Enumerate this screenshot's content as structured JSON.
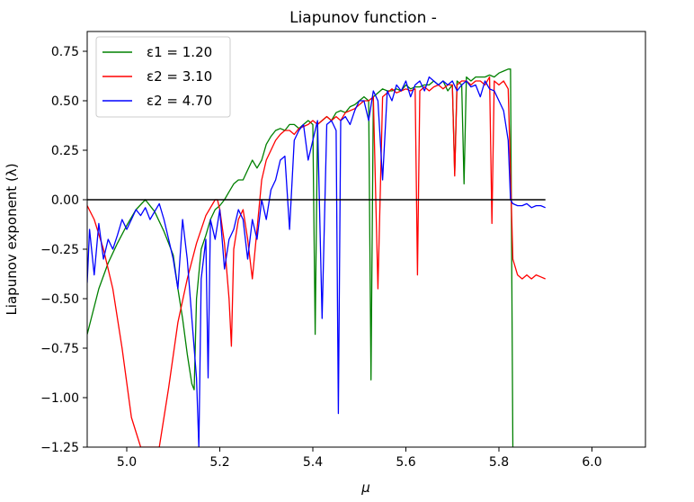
{
  "chart_data": {
    "type": "line",
    "title": "Liapunov function -",
    "xlabel": "μ",
    "ylabel": "Liapunov exponent (λ)",
    "xlim": [
      4.915,
      6.115
    ],
    "ylim": [
      -1.25,
      0.85
    ],
    "xticks": [
      5.0,
      5.2,
      5.4,
      5.6,
      5.8,
      6.0
    ],
    "xtick_labels": [
      "5.0",
      "5.2",
      "5.4",
      "5.6",
      "5.8",
      "6.0"
    ],
    "yticks": [
      0.75,
      0.5,
      0.25,
      0.0,
      -0.25,
      -0.5,
      -0.75,
      -1.0,
      -1.25
    ],
    "ytick_labels": [
      "0.75",
      "0.50",
      "0.25",
      "0.00",
      "−0.25",
      "−0.50",
      "−0.75",
      "−1.00",
      "−1.25"
    ],
    "legend_position": "top-left",
    "grid": false,
    "reference_line": {
      "y": 0.0,
      "x_start": 4.915,
      "x_end": 5.9,
      "color": "#000000"
    },
    "series": [
      {
        "name": "ε1 = 1.20",
        "color": "#008000",
        "x": [
          4.915,
          4.94,
          4.96,
          4.98,
          5.0,
          5.02,
          5.04,
          5.06,
          5.08,
          5.09,
          5.1,
          5.11,
          5.12,
          5.13,
          5.14,
          5.145,
          5.15,
          5.16,
          5.17,
          5.18,
          5.19,
          5.2,
          5.21,
          5.22,
          5.23,
          5.24,
          5.25,
          5.26,
          5.27,
          5.28,
          5.29,
          5.3,
          5.31,
          5.32,
          5.33,
          5.34,
          5.35,
          5.36,
          5.37,
          5.38,
          5.39,
          5.4,
          5.405,
          5.41,
          5.42,
          5.43,
          5.44,
          5.45,
          5.46,
          5.47,
          5.48,
          5.49,
          5.5,
          5.51,
          5.52,
          5.525,
          5.53,
          5.54,
          5.55,
          5.56,
          5.57,
          5.58,
          5.59,
          5.6,
          5.61,
          5.62,
          5.63,
          5.64,
          5.65,
          5.66,
          5.67,
          5.68,
          5.69,
          5.7,
          5.705,
          5.71,
          5.72,
          5.725,
          5.73,
          5.74,
          5.75,
          5.76,
          5.77,
          5.78,
          5.79,
          5.8,
          5.81,
          5.82,
          5.825,
          5.83
        ],
        "y": [
          -0.68,
          -0.45,
          -0.32,
          -0.22,
          -0.13,
          -0.05,
          0.0,
          -0.06,
          -0.16,
          -0.22,
          -0.28,
          -0.45,
          -0.6,
          -0.78,
          -0.93,
          -0.96,
          -0.5,
          -0.25,
          -0.18,
          -0.1,
          -0.05,
          -0.03,
          0.0,
          0.04,
          0.08,
          0.1,
          0.1,
          0.15,
          0.2,
          0.16,
          0.2,
          0.28,
          0.32,
          0.35,
          0.36,
          0.35,
          0.38,
          0.38,
          0.36,
          0.38,
          0.4,
          0.38,
          -0.68,
          0.38,
          0.4,
          0.42,
          0.4,
          0.44,
          0.45,
          0.44,
          0.47,
          0.48,
          0.5,
          0.52,
          0.5,
          -0.91,
          0.52,
          0.54,
          0.56,
          0.55,
          0.55,
          0.56,
          0.55,
          0.58,
          0.56,
          0.57,
          0.57,
          0.58,
          0.58,
          0.6,
          0.58,
          0.6,
          0.55,
          0.58,
          0.13,
          0.6,
          0.58,
          0.08,
          0.62,
          0.6,
          0.62,
          0.62,
          0.62,
          0.63,
          0.62,
          0.64,
          0.65,
          0.66,
          0.66,
          -1.25
        ]
      },
      {
        "name": "ε2 = 3.10",
        "color": "#ff0000",
        "x": [
          4.915,
          4.93,
          4.95,
          4.97,
          4.99,
          5.01,
          5.03,
          5.045,
          5.06,
          5.07,
          5.09,
          5.11,
          5.13,
          5.15,
          5.17,
          5.19,
          5.195,
          5.2,
          5.21,
          5.22,
          5.225,
          5.23,
          5.24,
          5.25,
          5.26,
          5.27,
          5.28,
          5.29,
          5.3,
          5.31,
          5.32,
          5.33,
          5.34,
          5.35,
          5.36,
          5.37,
          5.38,
          5.39,
          5.4,
          5.41,
          5.42,
          5.43,
          5.44,
          5.45,
          5.46,
          5.47,
          5.48,
          5.49,
          5.5,
          5.51,
          5.52,
          5.53,
          5.54,
          5.55,
          5.56,
          5.57,
          5.58,
          5.59,
          5.6,
          5.61,
          5.62,
          5.625,
          5.63,
          5.64,
          5.65,
          5.66,
          5.67,
          5.68,
          5.69,
          5.7,
          5.705,
          5.71,
          5.72,
          5.73,
          5.74,
          5.75,
          5.76,
          5.77,
          5.78,
          5.785,
          5.79,
          5.8,
          5.81,
          5.82,
          5.83,
          5.84,
          5.85,
          5.86,
          5.87,
          5.88,
          5.89,
          5.9
        ],
        "y": [
          -0.03,
          -0.1,
          -0.25,
          -0.45,
          -0.75,
          -1.1,
          -1.25,
          -1.25,
          -1.25,
          -1.25,
          -0.95,
          -0.62,
          -0.4,
          -0.22,
          -0.08,
          0.0,
          0.0,
          -0.05,
          -0.22,
          -0.5,
          -0.74,
          -0.25,
          -0.1,
          -0.05,
          -0.2,
          -0.4,
          -0.15,
          0.1,
          0.2,
          0.25,
          0.3,
          0.33,
          0.35,
          0.35,
          0.33,
          0.36,
          0.37,
          0.38,
          0.4,
          0.38,
          0.4,
          0.42,
          0.4,
          0.42,
          0.4,
          0.44,
          0.45,
          0.46,
          0.48,
          0.5,
          0.5,
          0.52,
          -0.45,
          0.52,
          0.54,
          0.56,
          0.54,
          0.55,
          0.56,
          0.55,
          0.56,
          -0.38,
          0.55,
          0.57,
          0.55,
          0.57,
          0.58,
          0.56,
          0.58,
          0.58,
          0.12,
          0.58,
          0.6,
          0.6,
          0.58,
          0.6,
          0.6,
          0.58,
          0.62,
          -0.12,
          0.6,
          0.58,
          0.6,
          0.56,
          -0.3,
          -0.38,
          -0.4,
          -0.38,
          -0.4,
          -0.38,
          -0.39,
          -0.4
        ]
      },
      {
        "name": "ε2 = 4.70",
        "color": "#0000ff",
        "x": [
          4.915,
          4.92,
          4.93,
          4.94,
          4.95,
          4.96,
          4.97,
          4.98,
          4.99,
          5.0,
          5.01,
          5.02,
          5.03,
          5.04,
          5.05,
          5.06,
          5.07,
          5.08,
          5.09,
          5.1,
          5.11,
          5.12,
          5.13,
          5.14,
          5.15,
          5.155,
          5.16,
          5.17,
          5.175,
          5.18,
          5.19,
          5.2,
          5.21,
          5.22,
          5.23,
          5.24,
          5.25,
          5.26,
          5.27,
          5.28,
          5.29,
          5.3,
          5.31,
          5.32,
          5.33,
          5.34,
          5.35,
          5.36,
          5.37,
          5.38,
          5.39,
          5.4,
          5.41,
          5.42,
          5.43,
          5.44,
          5.45,
          5.455,
          5.46,
          5.47,
          5.48,
          5.49,
          5.5,
          5.51,
          5.52,
          5.53,
          5.54,
          5.55,
          5.56,
          5.57,
          5.58,
          5.59,
          5.6,
          5.61,
          5.62,
          5.63,
          5.64,
          5.65,
          5.66,
          5.67,
          5.68,
          5.69,
          5.7,
          5.71,
          5.72,
          5.73,
          5.74,
          5.75,
          5.76,
          5.77,
          5.78,
          5.79,
          5.8,
          5.81,
          5.82,
          5.825,
          5.83,
          5.84,
          5.85,
          5.86,
          5.87,
          5.88,
          5.89,
          5.9
        ],
        "y": [
          -0.42,
          -0.15,
          -0.38,
          -0.12,
          -0.3,
          -0.2,
          -0.25,
          -0.18,
          -0.1,
          -0.15,
          -0.1,
          -0.05,
          -0.08,
          -0.04,
          -0.1,
          -0.06,
          -0.02,
          -0.1,
          -0.2,
          -0.3,
          -0.45,
          -0.1,
          -0.3,
          -0.6,
          -0.9,
          -1.25,
          -0.4,
          -0.2,
          -0.9,
          -0.1,
          -0.2,
          -0.05,
          -0.35,
          -0.2,
          -0.15,
          -0.05,
          -0.1,
          -0.3,
          -0.1,
          -0.2,
          0.0,
          -0.1,
          0.05,
          0.1,
          0.2,
          0.22,
          -0.15,
          0.3,
          0.35,
          0.38,
          0.2,
          0.3,
          0.4,
          -0.6,
          0.38,
          0.4,
          0.35,
          -1.08,
          0.4,
          0.42,
          0.38,
          0.45,
          0.5,
          0.5,
          0.4,
          0.55,
          0.5,
          0.1,
          0.55,
          0.5,
          0.58,
          0.55,
          0.6,
          0.52,
          0.58,
          0.6,
          0.55,
          0.62,
          0.6,
          0.58,
          0.6,
          0.58,
          0.6,
          0.55,
          0.58,
          0.6,
          0.57,
          0.58,
          0.52,
          0.6,
          0.56,
          0.55,
          0.5,
          0.45,
          0.3,
          0.0,
          -0.02,
          -0.03,
          -0.03,
          -0.02,
          -0.04,
          -0.03,
          -0.03,
          -0.04
        ]
      }
    ]
  }
}
